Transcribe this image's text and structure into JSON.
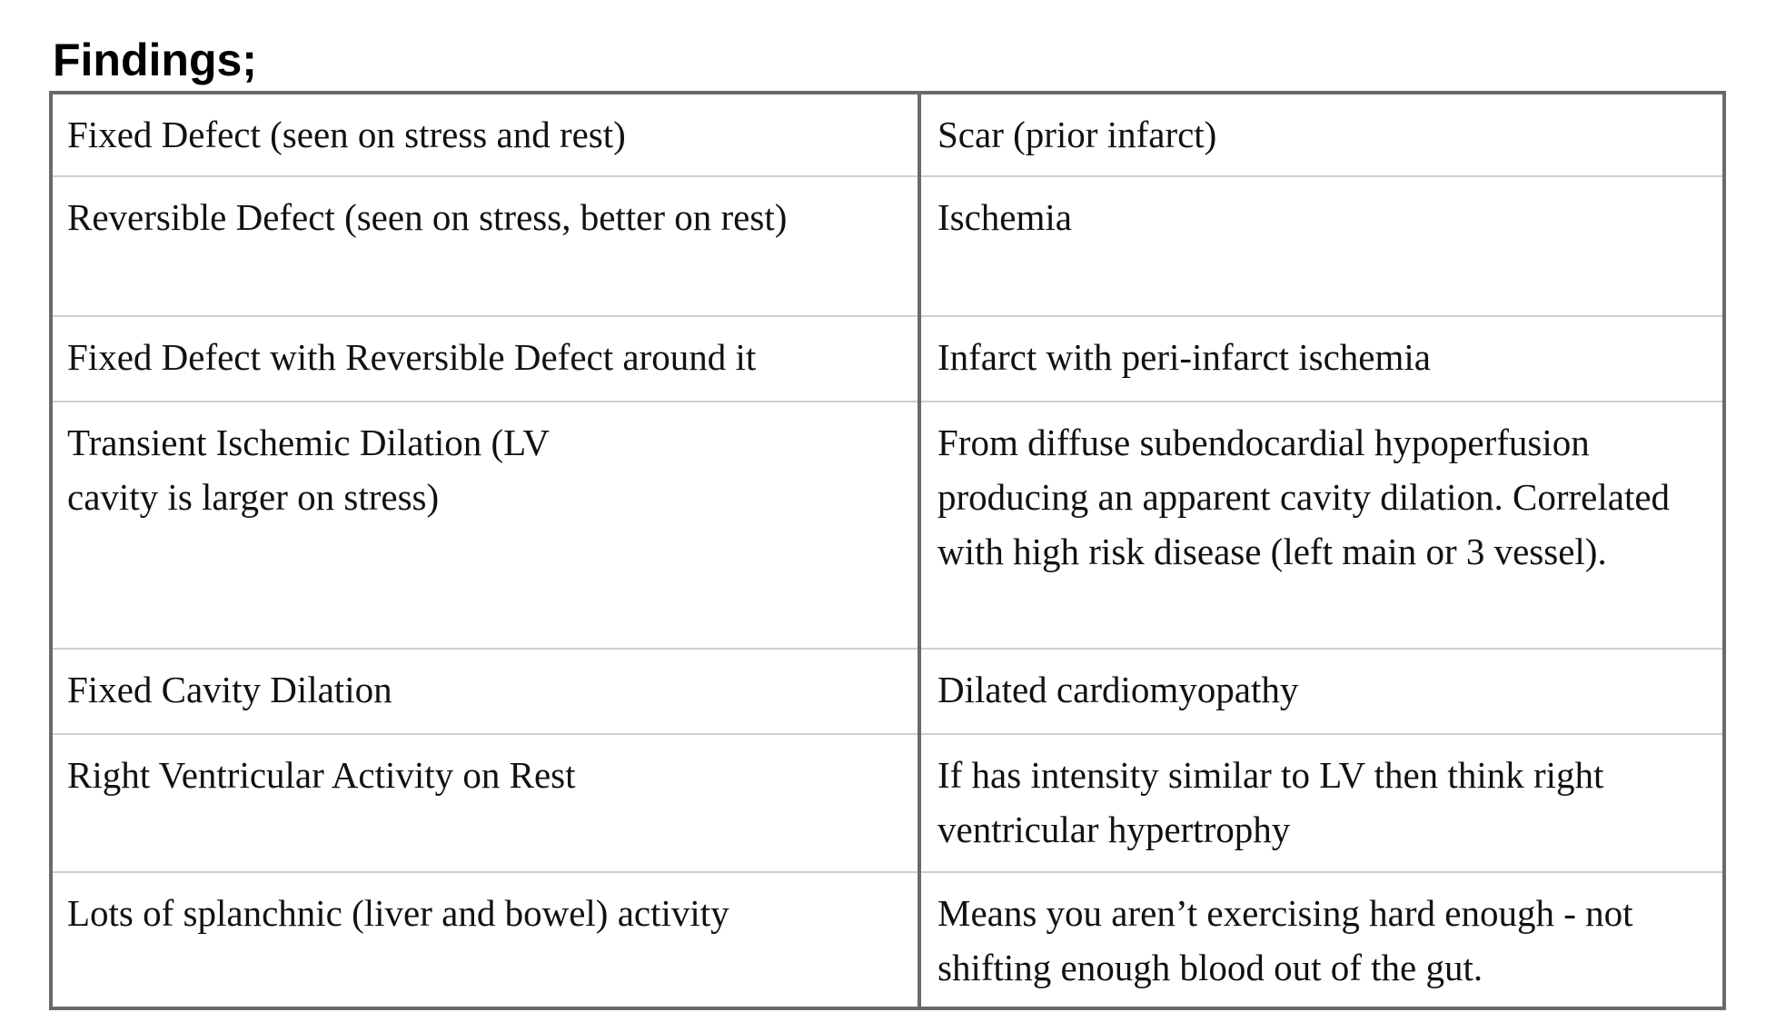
{
  "document": {
    "heading": "Findings;",
    "rows": [
      {
        "finding": "Fixed Defect (seen on stress and rest)",
        "meaning": "Scar (prior infarct)"
      },
      {
        "finding": "Reversible Defect (seen on stress, better on rest)",
        "meaning": "Ischemia"
      },
      {
        "finding": "Fixed Defect with Reversible Defect around it",
        "meaning": "Infarct with peri-infarct ischemia"
      },
      {
        "finding": "Transient Ischemic Dilation (LV cavity is larger on stress)",
        "meaning": "From diffuse subendocardial hypoperfusion producing an apparent cavity dilation. Correlated with high risk disease (left main or 3 vessel)."
      },
      {
        "finding": "Fixed Cavity Dilation",
        "meaning": "Dilated cardiomyopathy"
      },
      {
        "finding": "Right Ventricular Activity on Rest",
        "meaning": "If has intensity similar to LV then think right ventricular hypertrophy"
      },
      {
        "finding": "Lots of splanchnic (liver and bowel) activity",
        "meaning": "Means you aren’t exercising hard enough - not shifting enough blood out of the gut."
      }
    ]
  }
}
